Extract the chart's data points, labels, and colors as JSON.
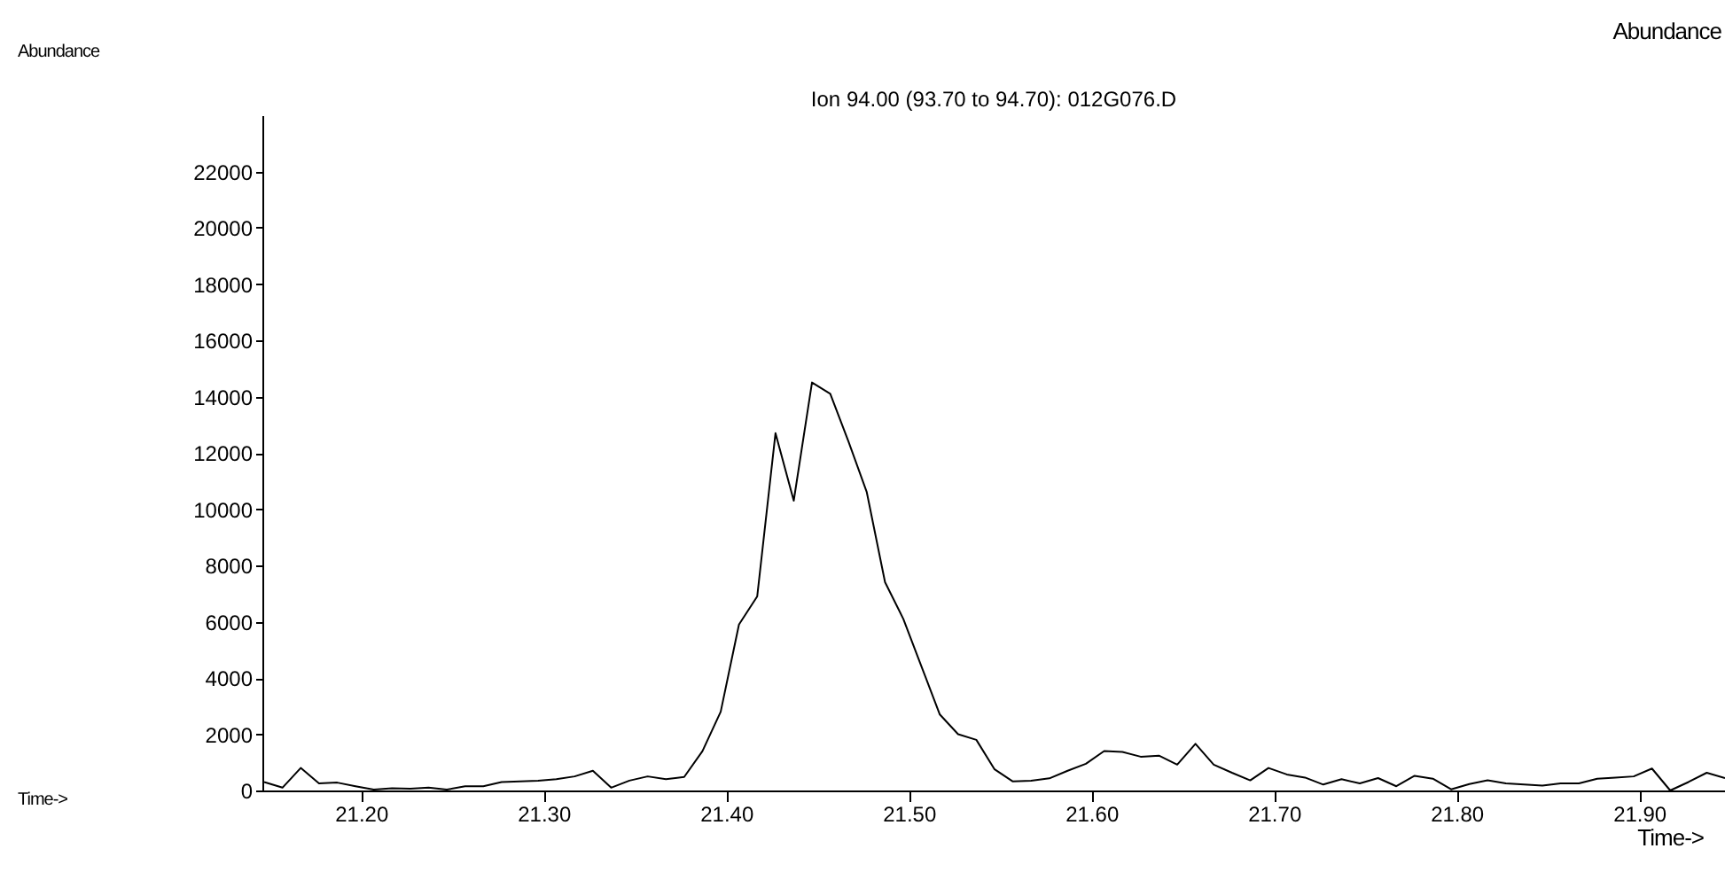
{
  "chart_data": {
    "type": "line",
    "title": "Ion 94.00 (93.70 to 94.70): 012G076.D",
    "xlabel": "Time->",
    "ylabel": "Abundance",
    "annotations": [
      "Abundance",
      "Time->"
    ],
    "x": [
      21.147,
      21.157,
      21.167,
      21.177,
      21.187,
      21.197,
      21.207,
      21.217,
      21.227,
      21.237,
      21.247,
      21.257,
      21.267,
      21.277,
      21.287,
      21.297,
      21.307,
      21.317,
      21.327,
      21.337,
      21.347,
      21.357,
      21.367,
      21.377,
      21.387,
      21.397,
      21.407,
      21.417,
      21.427,
      21.437,
      21.447,
      21.457,
      21.467,
      21.477,
      21.487,
      21.497,
      21.507,
      21.517,
      21.527,
      21.537,
      21.547,
      21.557,
      21.567,
      21.577,
      21.587,
      21.597,
      21.607,
      21.617,
      21.627,
      21.637,
      21.647,
      21.657,
      21.667,
      21.677,
      21.687,
      21.697,
      21.707,
      21.717,
      21.727,
      21.737,
      21.747,
      21.757,
      21.767,
      21.777,
      21.787,
      21.797,
      21.807,
      21.817,
      21.827,
      21.837,
      21.847,
      21.857,
      21.867,
      21.877,
      21.887,
      21.897,
      21.907,
      21.917,
      21.927,
      21.937,
      21.947
    ],
    "series": [
      {
        "color": "#000000",
        "values": [
          300,
          100,
          800,
          250,
          280,
          150,
          30,
          80,
          60,
          100,
          30,
          150,
          150,
          300,
          320,
          350,
          400,
          500,
          700,
          100,
          350,
          500,
          400,
          480,
          1400,
          2800,
          5900,
          6900,
          12700,
          10300,
          14500,
          14100,
          12400,
          10600,
          7400,
          6100,
          4400,
          2700,
          2000,
          1800,
          750,
          320,
          350,
          430,
          700,
          950,
          1400,
          1370,
          1200,
          1240,
          920,
          1660,
          920,
          630,
          360,
          800,
          570,
          460,
          210,
          400,
          250,
          440,
          150,
          520,
          420,
          40,
          230,
          360,
          250,
          210,
          170,
          250,
          250,
          420,
          460,
          500,
          780,
          0,
          300,
          630,
          440
        ]
      }
    ],
    "xlim": [
      21.146,
      21.947
    ],
    "xticks": [
      {
        "value": 21.2,
        "label": "21.20"
      },
      {
        "value": 21.3,
        "label": "21.30"
      },
      {
        "value": 21.4,
        "label": "21.40"
      },
      {
        "value": 21.5,
        "label": "21.50"
      },
      {
        "value": 21.6,
        "label": "21.60"
      },
      {
        "value": 21.7,
        "label": "21.70"
      },
      {
        "value": 21.8,
        "label": "21.80"
      },
      {
        "value": 21.9,
        "label": "21.90"
      }
    ],
    "ylim": [
      0,
      24000
    ],
    "yticks": [
      0,
      2000,
      4000,
      6000,
      8000,
      10000,
      12000,
      14000,
      16000,
      18000,
      20000,
      22000
    ],
    "grid": false,
    "marker": "none",
    "line_style": "solid"
  }
}
